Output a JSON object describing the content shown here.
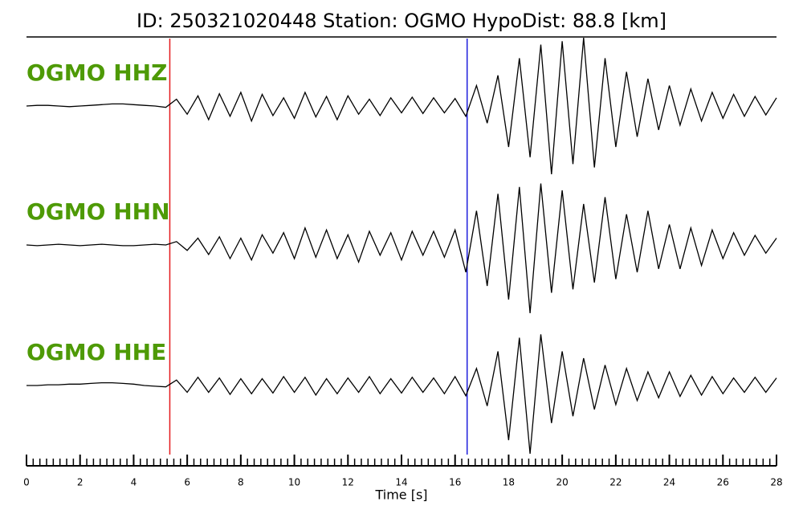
{
  "chart_data": {
    "type": "seismogram",
    "title": "ID: 250321020448   Station: OGMO   HypoDist:    88.8 [km]",
    "xlabel": "Time [s]",
    "xlim": [
      0,
      28
    ],
    "xticks": [
      0,
      2,
      4,
      6,
      8,
      10,
      12,
      14,
      16,
      18,
      20,
      22,
      24,
      26,
      28
    ],
    "xminor_step": 0.25,
    "ylim": [
      -1,
      1
    ],
    "label_color": "#4e9a06",
    "markers": [
      {
        "x": 5.35,
        "color": "#e41a1c"
      },
      {
        "x": 16.45,
        "color": "#1f1fdd"
      }
    ],
    "x": [
      0,
      0.4,
      0.8,
      1.2,
      1.6,
      2,
      2.4,
      2.8,
      3.2,
      3.6,
      4,
      4.4,
      4.8,
      5.2,
      5.6,
      6,
      6.4,
      6.8,
      7.2,
      7.6,
      8,
      8.4,
      8.8,
      9.2,
      9.6,
      10,
      10.4,
      10.8,
      11.2,
      11.6,
      12,
      12.4,
      12.8,
      13.2,
      13.6,
      14,
      14.4,
      14.8,
      15.2,
      15.6,
      16,
      16.4,
      16.8,
      17.2,
      17.6,
      18,
      18.4,
      18.8,
      19.2,
      19.6,
      20,
      20.4,
      20.8,
      21.2,
      21.6,
      22,
      22.4,
      22.8,
      23.2,
      23.6,
      24,
      24.4,
      24.8,
      25.2,
      25.6,
      26,
      26.4,
      26.8,
      27.2,
      27.6,
      28
    ],
    "series": [
      {
        "name": "OGMO HHZ",
        "color": "#000000",
        "values": [
          0,
          0.01,
          0.01,
          0,
          -0.01,
          0,
          0.01,
          0.02,
          0.03,
          0.03,
          0.02,
          0.01,
          0,
          -0.02,
          0.1,
          -0.12,
          0.15,
          -0.2,
          0.18,
          -0.15,
          0.2,
          -0.22,
          0.17,
          -0.14,
          0.12,
          -0.18,
          0.2,
          -0.16,
          0.14,
          -0.2,
          0.15,
          -0.12,
          0.1,
          -0.14,
          0.12,
          -0.1,
          0.13,
          -0.11,
          0.12,
          -0.1,
          0.11,
          -0.15,
          0.3,
          -0.25,
          0.45,
          -0.6,
          0.7,
          -0.75,
          0.9,
          -1,
          0.95,
          -0.85,
          1,
          -0.9,
          0.7,
          -0.6,
          0.5,
          -0.45,
          0.4,
          -0.35,
          0.3,
          -0.28,
          0.25,
          -0.22,
          0.2,
          -0.18,
          0.17,
          -0.15,
          0.14,
          -0.13,
          0.12
        ]
      },
      {
        "name": "OGMO HHN",
        "color": "#000000",
        "values": [
          0,
          -0.01,
          0,
          0.01,
          0,
          -0.01,
          0,
          0.01,
          0,
          -0.01,
          -0.01,
          0,
          0.01,
          0,
          0.05,
          -0.08,
          0.1,
          -0.14,
          0.12,
          -0.2,
          0.1,
          -0.22,
          0.15,
          -0.12,
          0.18,
          -0.2,
          0.25,
          -0.18,
          0.22,
          -0.2,
          0.15,
          -0.25,
          0.2,
          -0.15,
          0.18,
          -0.22,
          0.2,
          -0.15,
          0.2,
          -0.18,
          0.22,
          -0.4,
          0.5,
          -0.6,
          0.75,
          -0.8,
          0.85,
          -1,
          0.9,
          -0.7,
          0.8,
          -0.65,
          0.6,
          -0.55,
          0.7,
          -0.5,
          0.45,
          -0.4,
          0.5,
          -0.35,
          0.3,
          -0.35,
          0.25,
          -0.3,
          0.22,
          -0.2,
          0.18,
          -0.15,
          0.14,
          -0.12,
          0.1
        ]
      },
      {
        "name": "OGMO HHE",
        "color": "#000000",
        "values": [
          0,
          0,
          0.01,
          0.01,
          0.02,
          0.02,
          0.03,
          0.04,
          0.04,
          0.03,
          0.02,
          0,
          -0.01,
          -0.02,
          0.08,
          -0.1,
          0.12,
          -0.1,
          0.11,
          -0.13,
          0.1,
          -0.12,
          0.1,
          -0.11,
          0.13,
          -0.1,
          0.12,
          -0.14,
          0.1,
          -0.12,
          0.11,
          -0.1,
          0.13,
          -0.12,
          0.1,
          -0.11,
          0.12,
          -0.1,
          0.11,
          -0.12,
          0.13,
          -0.15,
          0.25,
          -0.3,
          0.5,
          -0.8,
          0.7,
          -1,
          0.75,
          -0.55,
          0.5,
          -0.45,
          0.4,
          -0.35,
          0.3,
          -0.28,
          0.25,
          -0.22,
          0.2,
          -0.18,
          0.2,
          -0.16,
          0.15,
          -0.14,
          0.13,
          -0.12,
          0.11,
          -0.1,
          0.12,
          -0.1,
          0.11
        ]
      }
    ]
  }
}
